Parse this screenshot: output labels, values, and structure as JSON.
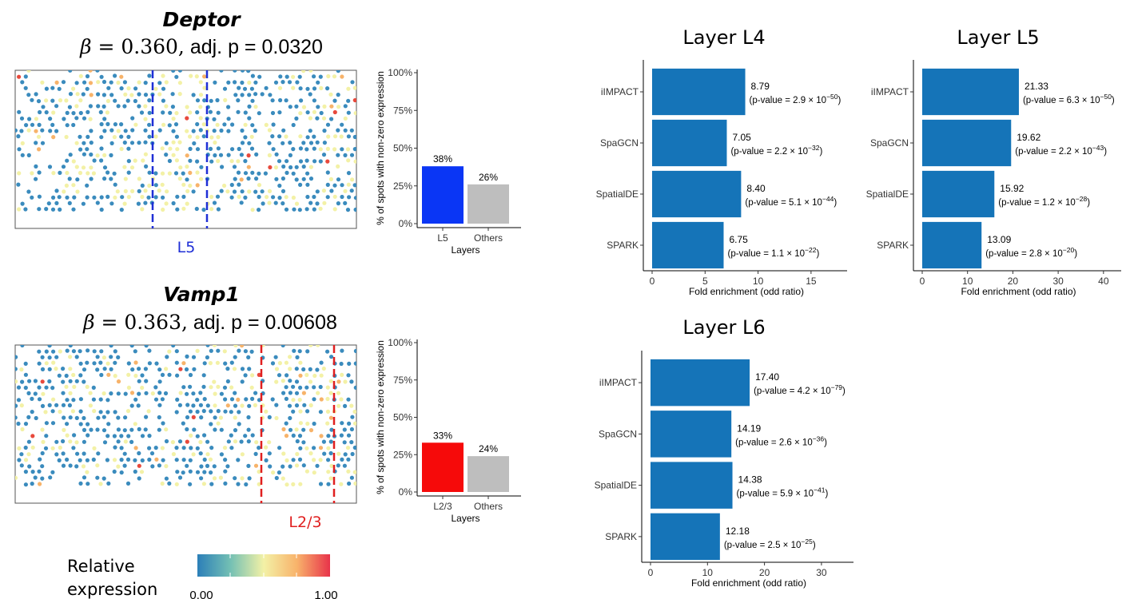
{
  "colors": {
    "spot_low": "#3a8bbd",
    "spot_mid": "#f3f1a6",
    "spot_high": "#e8493c",
    "l5_line": "#1f2fd6",
    "l23_line": "#e01f1f",
    "l5_bar": "#0a36f5",
    "l23_bar": "#f60a0a",
    "others_bar": "#bebebe",
    "enrich_bar": "#1574b8"
  },
  "genes": [
    {
      "name": "Deptor",
      "beta_symbol": "β",
      "beta_text": " = 0.360,",
      "p_text": " adj. p = 0.0320",
      "layer_label": "L5"
    },
    {
      "name": "Vamp1",
      "beta_symbol": "β",
      "beta_text": " = 0.363,",
      "p_text": " adj. p = 0.00608",
      "layer_label": "L2/3"
    }
  ],
  "legend": {
    "title_line1": "Relative",
    "title_line2": "expression",
    "min_label": "0.00",
    "max_label": "1.00"
  },
  "enrichment_titles": [
    "Layer L4",
    "Layer L5",
    "Layer L6"
  ],
  "chart_data": [
    {
      "type": "bar",
      "title": "",
      "categories": [
        "L5",
        "Others"
      ],
      "values": [
        38,
        26
      ],
      "value_labels": [
        "38%",
        "26%"
      ],
      "xlabel": "Layers",
      "ylabel": "% of spots with non-zero expression",
      "ylim": [
        0,
        100
      ],
      "yticks": [
        "0%",
        "25%",
        "50%",
        "75%",
        "100%"
      ]
    },
    {
      "type": "bar",
      "title": "",
      "categories": [
        "L2/3",
        "Others"
      ],
      "values": [
        33,
        24
      ],
      "value_labels": [
        "33%",
        "24%"
      ],
      "xlabel": "Layers",
      "ylabel": "% of spots with non-zero expression",
      "ylim": [
        0,
        100
      ],
      "yticks": [
        "0%",
        "25%",
        "50%",
        "75%",
        "100%"
      ]
    },
    {
      "type": "bar",
      "orientation": "horizontal",
      "title": "Layer L4",
      "categories": [
        "iIMPACT",
        "SpaGCN",
        "SpatialDE",
        "SPARK"
      ],
      "values": [
        8.79,
        7.05,
        8.4,
        6.75
      ],
      "value_labels": [
        "8.79",
        "7.05",
        "8.40",
        "6.75"
      ],
      "pvalue_labels": [
        {
          "pre": "(p-value = 2.9 × 10",
          "exp": "−50",
          "post": ")"
        },
        {
          "pre": "(p-value = 2.2 × 10",
          "exp": "−32",
          "post": ")"
        },
        {
          "pre": "(p-value = 5.1 × 10",
          "exp": "−44",
          "post": ")"
        },
        {
          "pre": "(p-value = 1.1 × 10",
          "exp": "−22",
          "post": ")"
        }
      ],
      "xlabel": "Fold enrichment (odd ratio)",
      "ylabel": "",
      "xlim": [
        0,
        17.8
      ],
      "xticks": [
        0,
        5,
        10,
        15
      ]
    },
    {
      "type": "bar",
      "orientation": "horizontal",
      "title": "Layer L5",
      "categories": [
        "iIMPACT",
        "SpaGCN",
        "SpatialDE",
        "SPARK"
      ],
      "values": [
        21.33,
        19.62,
        15.92,
        13.09
      ],
      "value_labels": [
        "21.33",
        "19.62",
        "15.92",
        "13.09"
      ],
      "pvalue_labels": [
        {
          "pre": "(p-value = 6.3 × 10",
          "exp": "−50",
          "post": ")"
        },
        {
          "pre": "(p-value = 2.2 × 10",
          "exp": "−43",
          "post": ")"
        },
        {
          "pre": "(p-value = 1.2 × 10",
          "exp": "−28",
          "post": ")"
        },
        {
          "pre": "(p-value = 2.8 × 10",
          "exp": "−20",
          "post": ")"
        }
      ],
      "xlabel": "Fold enrichment (odd ratio)",
      "ylabel": "",
      "xlim": [
        0,
        42.5
      ],
      "xticks": [
        0,
        10,
        20,
        30,
        40
      ]
    },
    {
      "type": "bar",
      "orientation": "horizontal",
      "title": "Layer L6",
      "categories": [
        "iIMPACT",
        "SpaGCN",
        "SpatialDE",
        "SPARK"
      ],
      "values": [
        17.4,
        14.19,
        14.38,
        12.18
      ],
      "value_labels": [
        "17.40",
        "14.19",
        "14.38",
        "12.18"
      ],
      "pvalue_labels": [
        {
          "pre": "(p-value = 4.2 × 10",
          "exp": "−79",
          "post": ")"
        },
        {
          "pre": "(p-value = 2.6 × 10",
          "exp": "−36",
          "post": ")"
        },
        {
          "pre": "(p-value = 5.9 × 10",
          "exp": "−41",
          "post": ")"
        },
        {
          "pre": "(p-value = 2.5 × 10",
          "exp": "−25",
          "post": ")"
        }
      ],
      "xlabel": "Fold enrichment (odd ratio)",
      "ylabel": "",
      "xlim": [
        0,
        34.5
      ],
      "xticks": [
        0,
        10,
        20,
        30
      ]
    }
  ]
}
